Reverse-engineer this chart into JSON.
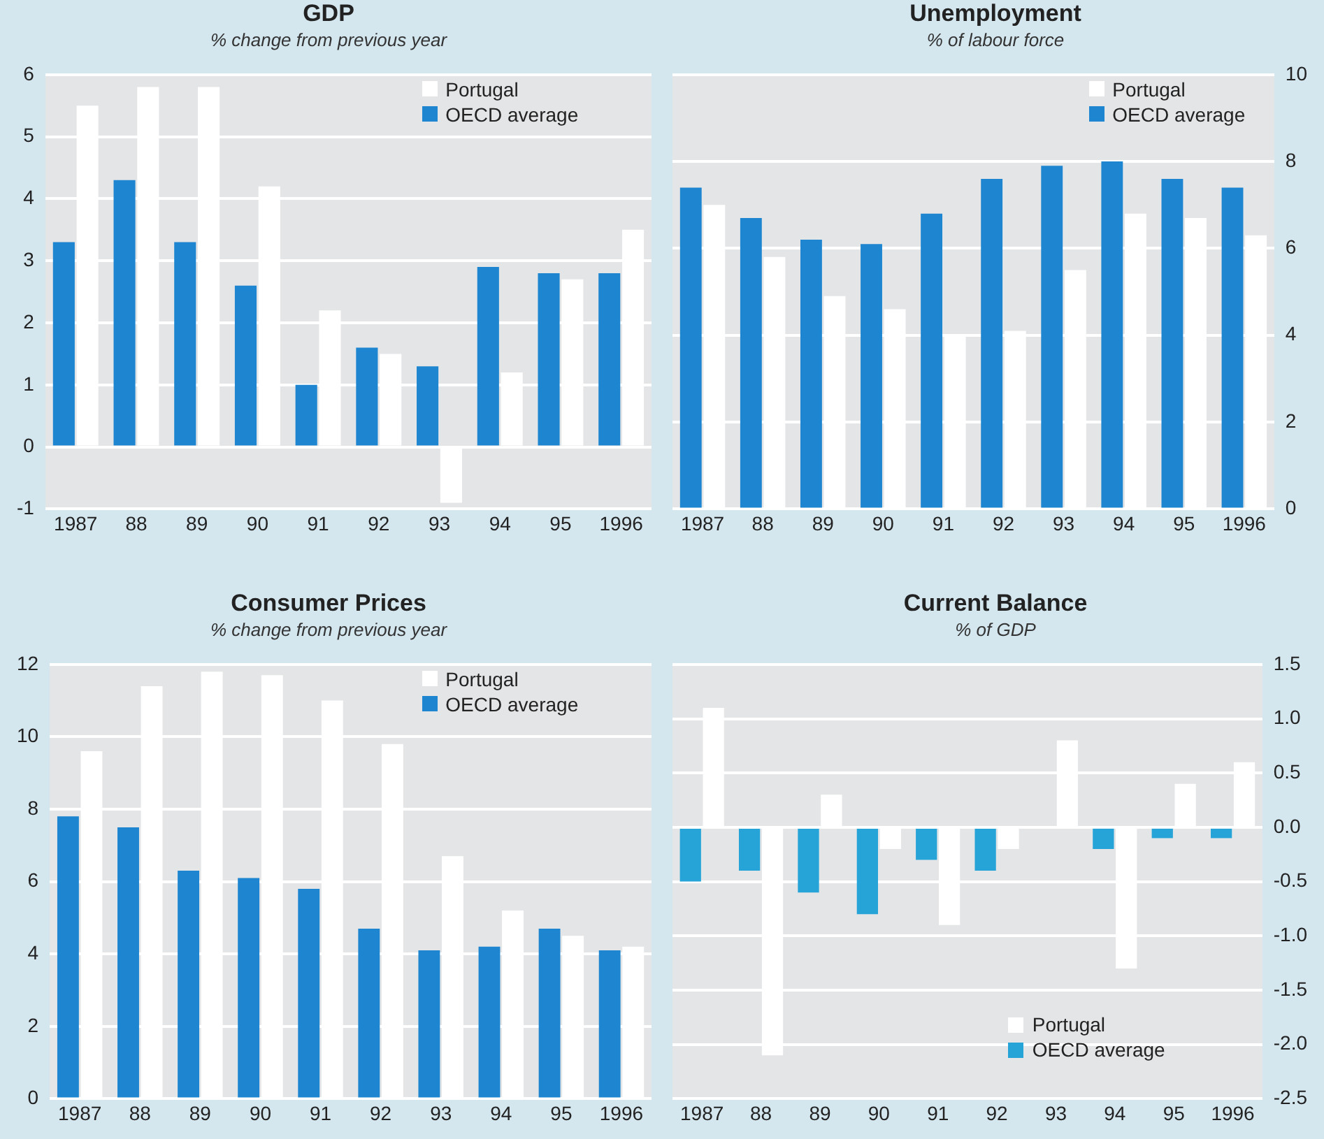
{
  "chart_data": [
    {
      "type": "bar",
      "title": "GDP",
      "subtitle": "% change from previous year",
      "categories": [
        "1987",
        "88",
        "89",
        "90",
        "91",
        "92",
        "93",
        "94",
        "95",
        "1996"
      ],
      "series": [
        {
          "name": "OECD average",
          "color": "#1e86d0",
          "values": [
            3.3,
            4.3,
            3.3,
            2.6,
            1.0,
            1.6,
            1.3,
            2.9,
            2.8,
            2.8
          ]
        },
        {
          "name": "Portugal",
          "color": "#ffffff",
          "values": [
            5.5,
            5.8,
            5.8,
            4.2,
            2.2,
            1.5,
            -0.9,
            1.2,
            2.7,
            3.5
          ]
        }
      ],
      "ylim": [
        -1,
        6
      ],
      "yticks": [
        -1,
        0,
        1,
        2,
        3,
        4,
        5,
        6
      ],
      "grid": "y",
      "legend": "top right"
    },
    {
      "type": "bar",
      "title": "Unemployment",
      "subtitle": "% of labour force",
      "categories": [
        "1987",
        "88",
        "89",
        "90",
        "91",
        "92",
        "93",
        "94",
        "95",
        "1996"
      ],
      "series": [
        {
          "name": "OECD average",
          "color": "#1e86d0",
          "axis": "y2",
          "values": [
            7.4,
            6.7,
            6.2,
            6.1,
            6.8,
            7.6,
            7.9,
            8.0,
            7.6,
            7.4
          ]
        },
        {
          "name": "Portugal",
          "color": "#ffffff",
          "axis": "y2",
          "values": [
            7.0,
            5.8,
            4.9,
            4.6,
            4.0,
            4.1,
            5.5,
            6.8,
            6.7,
            6.3
          ]
        }
      ],
      "y2lim": [
        0,
        10
      ],
      "y2ticks": [
        0,
        2,
        4,
        6,
        8,
        10
      ],
      "grid": "y",
      "legend": "top right"
    },
    {
      "type": "bar",
      "title": "Consumer Prices",
      "subtitle": "% change from previous year",
      "categories": [
        "1987",
        "88",
        "89",
        "90",
        "91",
        "92",
        "93",
        "94",
        "95",
        "1996"
      ],
      "series": [
        {
          "name": "OECD average",
          "color": "#1e86d0",
          "values": [
            7.8,
            7.5,
            6.3,
            6.1,
            5.8,
            4.7,
            4.1,
            4.2,
            4.7,
            4.1
          ]
        },
        {
          "name": "Portugal",
          "color": "#ffffff",
          "values": [
            9.6,
            11.4,
            11.8,
            11.7,
            11.0,
            9.8,
            6.7,
            5.2,
            4.5,
            4.2
          ]
        }
      ],
      "ylim": [
        0,
        12
      ],
      "yticks": [
        0,
        2,
        4,
        6,
        8,
        10,
        12
      ],
      "grid": "y",
      "legend": "top right"
    },
    {
      "type": "bar",
      "title": "Current Balance",
      "subtitle": "% of GDP",
      "categories": [
        "1987",
        "88",
        "89",
        "90",
        "91",
        "92",
        "93",
        "94",
        "95",
        "1996"
      ],
      "series": [
        {
          "name": "OECD average",
          "color": "#26a4d8",
          "axis": "y2",
          "values": [
            -0.5,
            -0.4,
            -0.6,
            -0.8,
            -0.3,
            -0.4,
            0.0,
            -0.2,
            -0.1,
            -0.1
          ]
        },
        {
          "name": "Portugal",
          "color": "#ffffff",
          "axis": "y2",
          "values": [
            1.1,
            -2.1,
            0.3,
            -0.2,
            -0.9,
            -0.2,
            0.8,
            -1.3,
            0.4,
            0.6
          ]
        }
      ],
      "y2lim": [
        -2.5,
        1.5
      ],
      "y2ticks": [
        {
          "value": 1.5,
          "label": "1.5"
        },
        {
          "value": 1,
          "label": "1.0"
        },
        {
          "value": 0.5,
          "label": "0.5"
        },
        {
          "value": 0,
          "label": "0.0"
        },
        {
          "value": -0.5,
          "label": "-0.5"
        },
        {
          "value": -1,
          "label": "-1.0"
        },
        {
          "value": -1.5,
          "label": "-1.5"
        },
        {
          "value": -2,
          "label": "-2.0"
        },
        {
          "value": -2.5,
          "label": "-2.5"
        }
      ],
      "grid": "y",
      "legend": "bottom"
    }
  ]
}
